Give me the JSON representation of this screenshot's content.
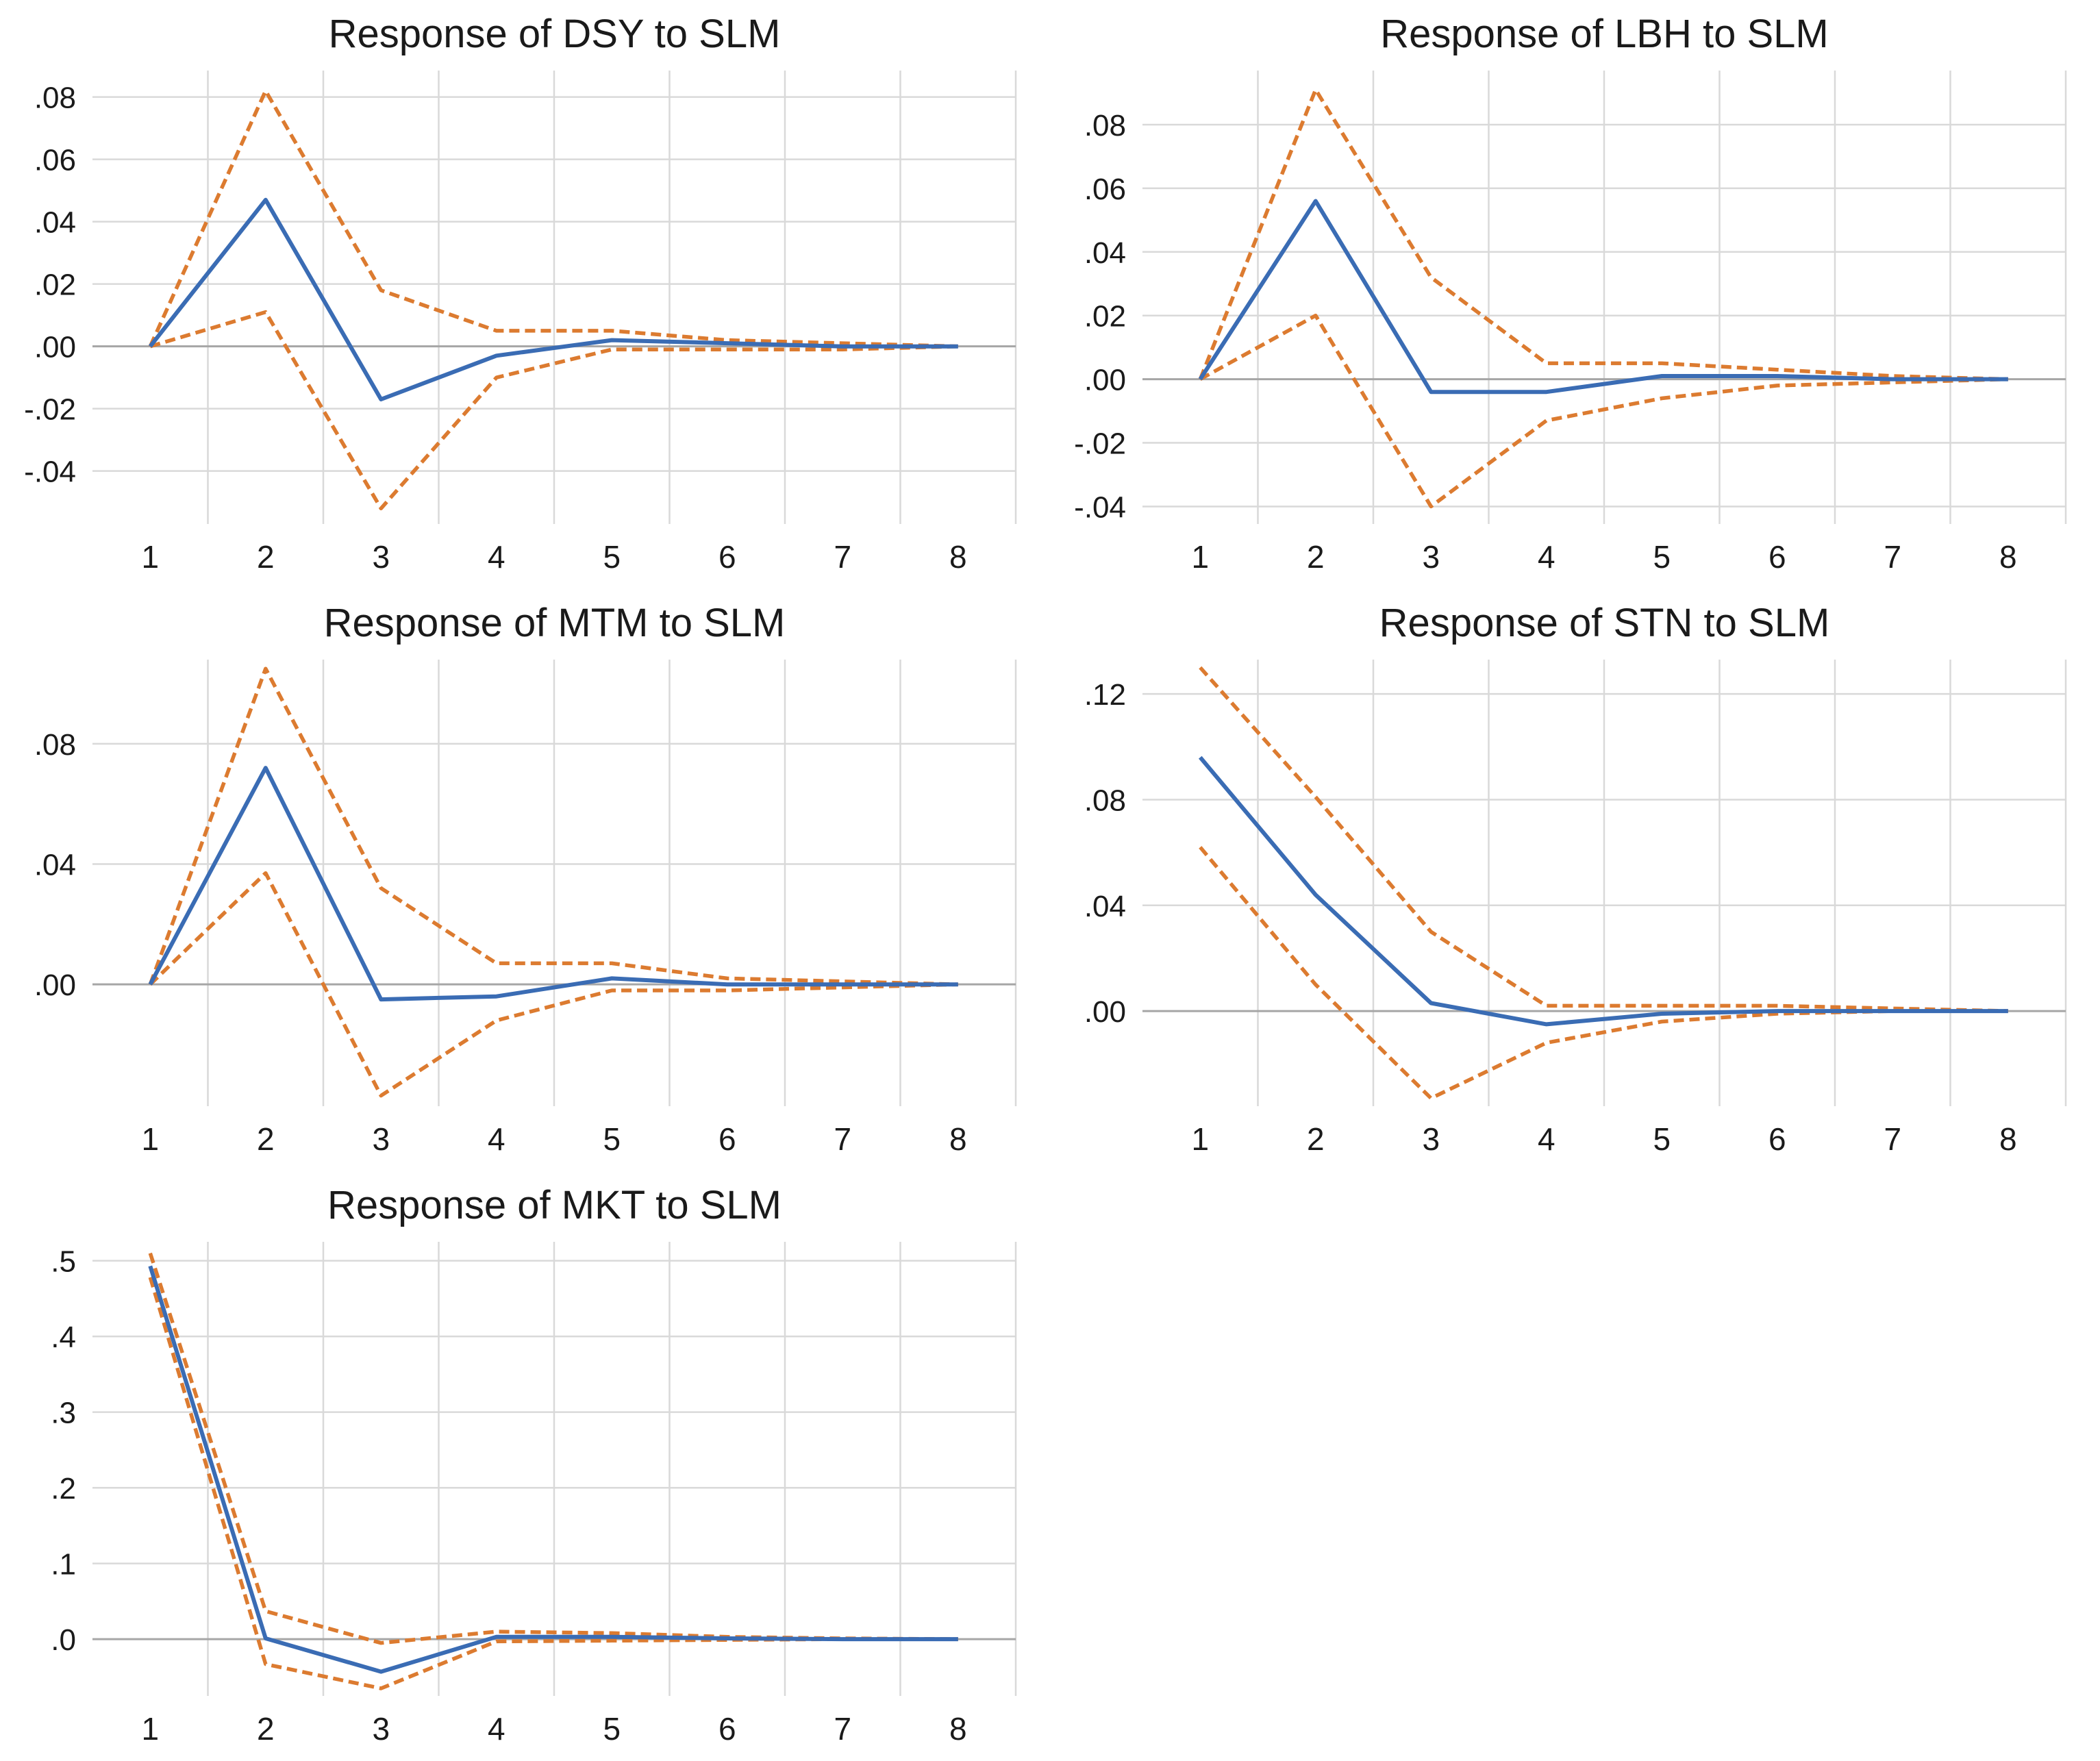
{
  "page": {
    "background": "#FFFFFF",
    "description": "Grid of five impulse-response charts, responses of DSY, LBH, MTM, STN and MKT to SLM, each with a solid mean line and dashed confidence bands over horizons 1 to 8"
  },
  "colors": {
    "mean_line": "#3A6CB4",
    "band_line": "#DC7B30",
    "gridline": "#D9D9D9",
    "zero_line": "#A6A6A6",
    "title_text": "#1A1A1A",
    "tick_text": "#1A1A1A",
    "background": "#FFFFFF"
  },
  "chart_data": [
    {
      "id": "dsy",
      "type": "line",
      "title": "Response of DSY to SLM",
      "xlabel": "",
      "ylabel": "",
      "grid": true,
      "legend": "none",
      "x": [
        1,
        2,
        3,
        4,
        5,
        6,
        7,
        8
      ],
      "x_labels": [
        "1",
        "2",
        "3",
        "4",
        "5",
        "6",
        "7",
        "8"
      ],
      "series": [
        {
          "name": "mean",
          "style": "solid",
          "values": [
            0.0,
            0.047,
            -0.017,
            -0.003,
            0.002,
            0.001,
            0.0,
            0.0
          ]
        },
        {
          "name": "upper-band",
          "style": "dashed",
          "values": [
            0.0,
            0.082,
            0.018,
            0.005,
            0.005,
            0.002,
            0.001,
            0.0
          ]
        },
        {
          "name": "lower-band",
          "style": "dashed",
          "values": [
            0.0,
            0.011,
            -0.052,
            -0.01,
            -0.001,
            -0.001,
            -0.001,
            0.0
          ]
        }
      ],
      "ytick_values": [
        0.08,
        0.06,
        0.04,
        0.02,
        0.0,
        -0.02,
        -0.04
      ],
      "ytick_labels": [
        ".08",
        ".06",
        ".04",
        ".02",
        ".00",
        "-.02",
        "-.04"
      ],
      "ylim": [
        -0.057,
        0.0885
      ]
    },
    {
      "id": "lbh",
      "type": "line",
      "title": "Response of LBH to SLM",
      "xlabel": "",
      "ylabel": "",
      "grid": true,
      "legend": "none",
      "x": [
        1,
        2,
        3,
        4,
        5,
        6,
        7,
        8
      ],
      "x_labels": [
        "1",
        "2",
        "3",
        "4",
        "5",
        "6",
        "7",
        "8"
      ],
      "series": [
        {
          "name": "mean",
          "style": "solid",
          "values": [
            0.0,
            0.056,
            -0.004,
            -0.004,
            0.001,
            0.001,
            0.0,
            0.0
          ]
        },
        {
          "name": "upper-band",
          "style": "dashed",
          "values": [
            0.0,
            0.091,
            0.032,
            0.005,
            0.005,
            0.003,
            0.001,
            0.0
          ]
        },
        {
          "name": "lower-band",
          "style": "dashed",
          "values": [
            0.0,
            0.02,
            -0.04,
            -0.013,
            -0.006,
            -0.002,
            -0.001,
            0.0
          ]
        }
      ],
      "ytick_values": [
        0.08,
        0.06,
        0.04,
        0.02,
        0.0,
        -0.02,
        -0.04
      ],
      "ytick_labels": [
        ".08",
        ".06",
        ".04",
        ".02",
        ".00",
        "-.02",
        "-.04"
      ],
      "ylim": [
        -0.0455,
        0.097
      ]
    },
    {
      "id": "mtm",
      "type": "line",
      "title": "Response of MTM to SLM",
      "xlabel": "",
      "ylabel": "",
      "grid": true,
      "legend": "none",
      "x": [
        1,
        2,
        3,
        4,
        5,
        6,
        7,
        8
      ],
      "x_labels": [
        "1",
        "2",
        "3",
        "4",
        "5",
        "6",
        "7",
        "8"
      ],
      "series": [
        {
          "name": "mean",
          "style": "solid",
          "values": [
            0.0,
            0.072,
            -0.005,
            -0.004,
            0.002,
            0.0,
            0.0,
            0.0
          ]
        },
        {
          "name": "upper-band",
          "style": "dashed",
          "values": [
            0.0,
            0.105,
            0.032,
            0.007,
            0.007,
            0.002,
            0.001,
            0.0
          ]
        },
        {
          "name": "lower-band",
          "style": "dashed",
          "values": [
            0.0,
            0.037,
            -0.037,
            -0.012,
            -0.002,
            -0.002,
            -0.001,
            0.0
          ]
        }
      ],
      "ytick_values": [
        0.08,
        0.04,
        0.0
      ],
      "ytick_labels": [
        ".08",
        ".04",
        ".00"
      ],
      "ylim": [
        -0.0405,
        0.108
      ]
    },
    {
      "id": "stn",
      "type": "line",
      "title": "Response of STN to SLM",
      "xlabel": "",
      "ylabel": "",
      "grid": true,
      "legend": "none",
      "x": [
        1,
        2,
        3,
        4,
        5,
        6,
        7,
        8
      ],
      "x_labels": [
        "1",
        "2",
        "3",
        "4",
        "5",
        "6",
        "7",
        "8"
      ],
      "series": [
        {
          "name": "mean",
          "style": "solid",
          "values": [
            0.096,
            0.044,
            0.003,
            -0.005,
            -0.001,
            0.0,
            0.0,
            0.0
          ]
        },
        {
          "name": "upper-band",
          "style": "dashed",
          "values": [
            0.13,
            0.081,
            0.03,
            0.002,
            0.002,
            0.002,
            0.001,
            0.0
          ]
        },
        {
          "name": "lower-band",
          "style": "dashed",
          "values": [
            0.062,
            0.01,
            -0.033,
            -0.012,
            -0.004,
            -0.001,
            0.0,
            0.0
          ]
        }
      ],
      "ytick_values": [
        0.12,
        0.08,
        0.04,
        0.0
      ],
      "ytick_labels": [
        ".12",
        ".08",
        ".04",
        ".00"
      ],
      "ylim": [
        -0.036,
        0.133
      ]
    },
    {
      "id": "mkt",
      "type": "line",
      "title": "Response of MKT to SLM",
      "xlabel": "",
      "ylabel": "",
      "grid": true,
      "legend": "none",
      "x": [
        1,
        2,
        3,
        4,
        5,
        6,
        7,
        8
      ],
      "x_labels": [
        "1",
        "2",
        "3",
        "4",
        "5",
        "6",
        "7",
        "8"
      ],
      "series": [
        {
          "name": "mean",
          "style": "solid",
          "values": [
            0.493,
            0.001,
            -0.043,
            0.003,
            0.003,
            0.001,
            0.0,
            0.0
          ]
        },
        {
          "name": "upper-band",
          "style": "dashed",
          "values": [
            0.51,
            0.037,
            -0.005,
            0.01,
            0.008,
            0.003,
            0.001,
            0.0
          ]
        },
        {
          "name": "lower-band",
          "style": "dashed",
          "values": [
            0.478,
            -0.033,
            -0.065,
            -0.003,
            -0.002,
            -0.001,
            0.0,
            0.0
          ]
        }
      ],
      "ytick_values": [
        0.5,
        0.4,
        0.3,
        0.2,
        0.1,
        0.0
      ],
      "ytick_labels": [
        ".5",
        ".4",
        ".3",
        ".2",
        ".1",
        ".0"
      ],
      "ylim": [
        -0.075,
        0.525
      ]
    }
  ]
}
